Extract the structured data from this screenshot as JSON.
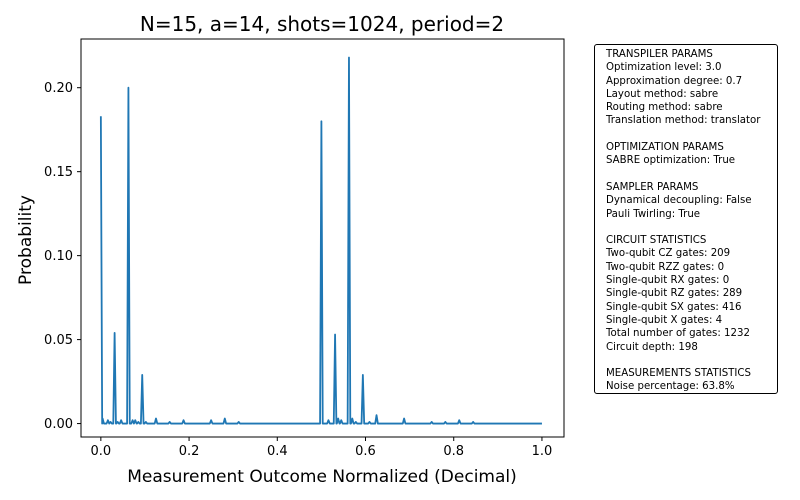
{
  "chart_data": {
    "type": "line",
    "title": "N=15, a=14, shots=1024, period=2",
    "xlabel": "Measurement Outcome Normalized (Decimal)",
    "ylabel": "Probability",
    "xlim": [
      -0.045,
      1.05
    ],
    "ylim": [
      -0.008,
      0.229
    ],
    "xticks": [
      0.0,
      0.2,
      0.4,
      0.6,
      0.8,
      1.0
    ],
    "xtick_labels": [
      "0.0",
      "0.2",
      "0.4",
      "0.6",
      "0.8",
      "1.0"
    ],
    "yticks": [
      0.0,
      0.05,
      0.1,
      0.15,
      0.2
    ],
    "ytick_labels": [
      "0.00",
      "0.05",
      "0.10",
      "0.15",
      "0.20"
    ],
    "grid": false,
    "line_color": "#1f77b4",
    "series": [
      {
        "x": [
          0.0,
          0.004,
          0.016,
          0.022,
          0.0312,
          0.038,
          0.046,
          0.0625,
          0.072,
          0.078,
          0.085,
          0.0938,
          0.102,
          0.125,
          0.156,
          0.1875,
          0.25,
          0.281,
          0.3125,
          0.5,
          0.516,
          0.531,
          0.538,
          0.545,
          0.5625,
          0.57,
          0.578,
          0.594,
          0.609,
          0.625,
          0.6875,
          0.75,
          0.781,
          0.8125,
          0.844,
          1.0
        ],
        "y": [
          0.183,
          0.003,
          0.002,
          0.001,
          0.054,
          0.001,
          0.002,
          0.2,
          0.002,
          0.002,
          0.001,
          0.029,
          0.001,
          0.003,
          0.001,
          0.002,
          0.002,
          0.003,
          0.001,
          0.18,
          0.002,
          0.053,
          0.003,
          0.002,
          0.218,
          0.003,
          0.001,
          0.029,
          0.001,
          0.005,
          0.003,
          0.001,
          0.001,
          0.002,
          0.001,
          0.0
        ]
      }
    ]
  },
  "info": {
    "lines": [
      "TRANSPILER PARAMS",
      "Optimization level: 3.0",
      "Approximation degree: 0.7",
      "Layout method: sabre",
      "Routing method: sabre",
      "Translation method: translator",
      "",
      "OPTIMIZATION PARAMS",
      "SABRE optimization: True",
      "",
      "SAMPLER PARAMS",
      "Dynamical decoupling: False",
      "Pauli Twirling: True",
      "",
      "CIRCUIT STATISTICS",
      "Two-qubit CZ gates: 209",
      "Two-qubit RZZ gates: 0",
      "Single-qubit RX gates: 0",
      "Single-qubit RZ gates: 289",
      "Single-qubit SX gates: 416",
      "Single-qubit X gates: 4",
      "Total number of gates: 1232",
      "Circuit depth: 198",
      "",
      "MEASUREMENTS STATISTICS",
      "Noise percentage: 63.8%"
    ]
  }
}
